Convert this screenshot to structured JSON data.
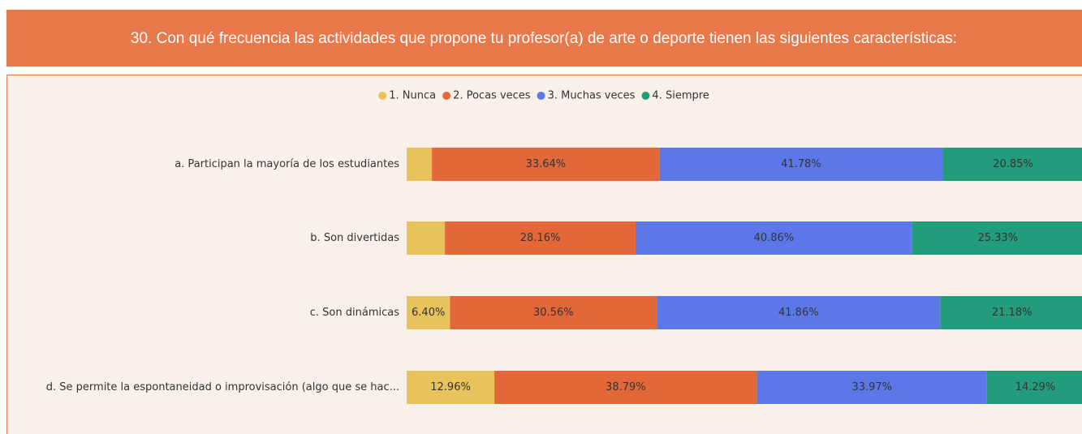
{
  "chart_data": {
    "type": "stacked-bar-horizontal",
    "title": "30. Con qué frecuencia las actividades que propone tu profesor(a) de arte o deporte tienen las siguientes características:",
    "categories": [
      "a. Participan la mayoría de los estudiantes",
      "b. Son divertidas",
      "c. Son dinámicas",
      "d. Se permite la espontaneidad o improvisación (algo que se hac..."
    ],
    "xlim": [
      0,
      100
    ],
    "legend": "top",
    "series": [
      {
        "name": "1. Nunca",
        "color": "#e8c25a",
        "values": [
          3.73,
          5.65,
          6.4,
          12.96
        ],
        "value_labels": [
          null,
          null,
          "6.40%",
          "12.96%"
        ]
      },
      {
        "name": "2. Pocas veces",
        "color": "#e2683a",
        "values": [
          33.64,
          28.16,
          30.56,
          38.79
        ],
        "value_labels": [
          "33.64%",
          "28.16%",
          "30.56%",
          "38.79%"
        ]
      },
      {
        "name": "3. Muchas veces",
        "color": "#5b77e8",
        "values": [
          41.78,
          40.86,
          41.86,
          33.97
        ],
        "value_labels": [
          "41.78%",
          "40.86%",
          "41.86%",
          "33.97%"
        ]
      },
      {
        "name": "4. Siempre",
        "color": "#239c7c",
        "values": [
          20.85,
          25.33,
          21.18,
          14.29
        ],
        "value_labels": [
          "20.85%",
          "25.33%",
          "21.18%",
          "14.29%"
        ]
      }
    ]
  }
}
